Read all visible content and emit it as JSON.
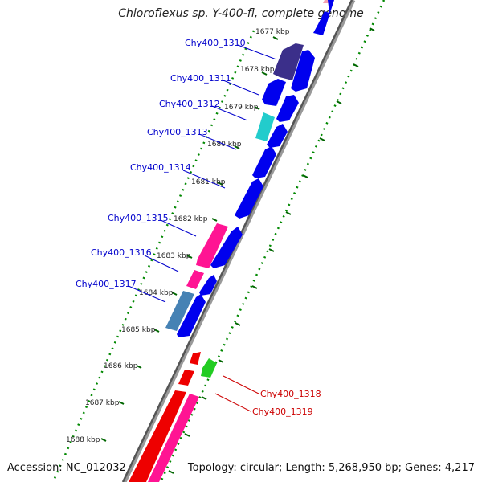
{
  "title": "Chloroflexus sp. Y-400-fl, complete genome",
  "accession": "Accession: NC_012032",
  "summary": "Topology: circular; Length: 5,268,950 bp; Genes: 4,217",
  "kbp_ticks": [
    "1677 kbp",
    "1678 kbp",
    "1679 kbp",
    "1680 kbp",
    "1681 kbp",
    "1682 kbp",
    "1683 kbp",
    "1684 kbp",
    "1685 kbp",
    "1686 kbp",
    "1687 kbp",
    "1688 kbp"
  ],
  "gene_labels": [
    {
      "text": "Chy400_1310",
      "color": "#0000cc"
    },
    {
      "text": "Chy400_1311",
      "color": "#0000cc"
    },
    {
      "text": "Chy400_1312",
      "color": "#0000cc"
    },
    {
      "text": "Chy400_1313",
      "color": "#0000cc"
    },
    {
      "text": "Chy400_1314",
      "color": "#0000cc"
    },
    {
      "text": "Chy400_1315",
      "color": "#0000cc"
    },
    {
      "text": "Chy400_1316",
      "color": "#0000cc"
    },
    {
      "text": "Chy400_1317",
      "color": "#0000cc"
    },
    {
      "text": "Chy400_1318",
      "color": "#cc0000"
    },
    {
      "text": "Chy400_1319",
      "color": "#cc0000"
    }
  ],
  "colors": {
    "blue": "#0000ee",
    "navy": "#3b2f8a",
    "cyan": "#22cccc",
    "pink": "#ff1493",
    "steel": "#4682b4",
    "red": "#ee0000",
    "green": "#22cc22",
    "dotted": "#008800"
  }
}
